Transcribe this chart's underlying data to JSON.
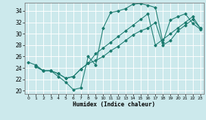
{
  "xlabel": "Humidex (Indice chaleur)",
  "bg_color": "#cce9ec",
  "grid_color": "#ffffff",
  "line_color": "#1a7a6e",
  "xlim": [
    -0.5,
    23.5
  ],
  "ylim": [
    19.5,
    35.5
  ],
  "xticks": [
    0,
    1,
    2,
    3,
    4,
    5,
    6,
    7,
    8,
    9,
    10,
    11,
    12,
    13,
    14,
    15,
    16,
    17,
    18,
    19,
    20,
    21,
    22,
    23
  ],
  "yticks": [
    20,
    22,
    24,
    26,
    28,
    30,
    32,
    34
  ],
  "line1_x": [
    0,
    1,
    2,
    3,
    4,
    5,
    6,
    7,
    8,
    9,
    10,
    11,
    12,
    13,
    14,
    15,
    16,
    17,
    18,
    19,
    20,
    21,
    22,
    23
  ],
  "line1_y": [
    25.0,
    24.5,
    23.5,
    23.5,
    22.5,
    21.5,
    20.2,
    20.5,
    26.0,
    24.5,
    31.0,
    33.7,
    34.0,
    34.4,
    35.2,
    35.3,
    35.0,
    34.6,
    28.5,
    32.4,
    33.0,
    33.5,
    31.8,
    30.8
  ],
  "line2_x": [
    1,
    2,
    3,
    4,
    5,
    6,
    7,
    8,
    9,
    10,
    11,
    12,
    13,
    14,
    15,
    16,
    17,
    18,
    19,
    20,
    21,
    22,
    23
  ],
  "line2_y": [
    24.2,
    23.5,
    23.5,
    23.0,
    22.2,
    22.5,
    23.8,
    24.8,
    25.3,
    26.0,
    27.0,
    27.8,
    28.8,
    29.8,
    30.5,
    31.0,
    32.0,
    28.0,
    28.8,
    30.5,
    31.5,
    32.5,
    31.0
  ],
  "line3_x": [
    1,
    2,
    3,
    4,
    5,
    6,
    7,
    8,
    9,
    10,
    11,
    12,
    13,
    14,
    15,
    16,
    17,
    18,
    19,
    20,
    21,
    22,
    23
  ],
  "line3_y": [
    24.2,
    23.5,
    23.5,
    23.0,
    22.2,
    22.5,
    23.8,
    24.8,
    26.5,
    27.5,
    28.5,
    29.5,
    30.5,
    31.5,
    32.5,
    33.5,
    28.0,
    29.0,
    30.0,
    31.0,
    32.0,
    33.0,
    31.0
  ]
}
